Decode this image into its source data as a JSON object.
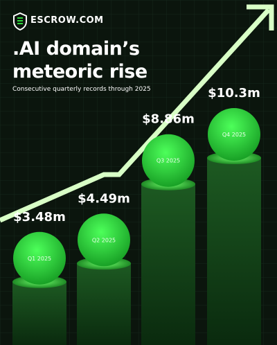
{
  "brand": "ESCROW.COM",
  "chart_data": {
    "type": "bar",
    "title": ".AI domain’s meteoric rise",
    "subtitle": "Consecutive quarterly records through 2025",
    "categories": [
      "Q1 2025",
      "Q2 2025",
      "Q3 2025",
      "Q4 2025"
    ],
    "values": [
      3.48,
      4.49,
      8.86,
      10.3
    ],
    "value_labels": [
      "$3.48m",
      "$4.49m",
      "$8.86m",
      "$10.3m"
    ],
    "color": "#2fd83c"
  }
}
